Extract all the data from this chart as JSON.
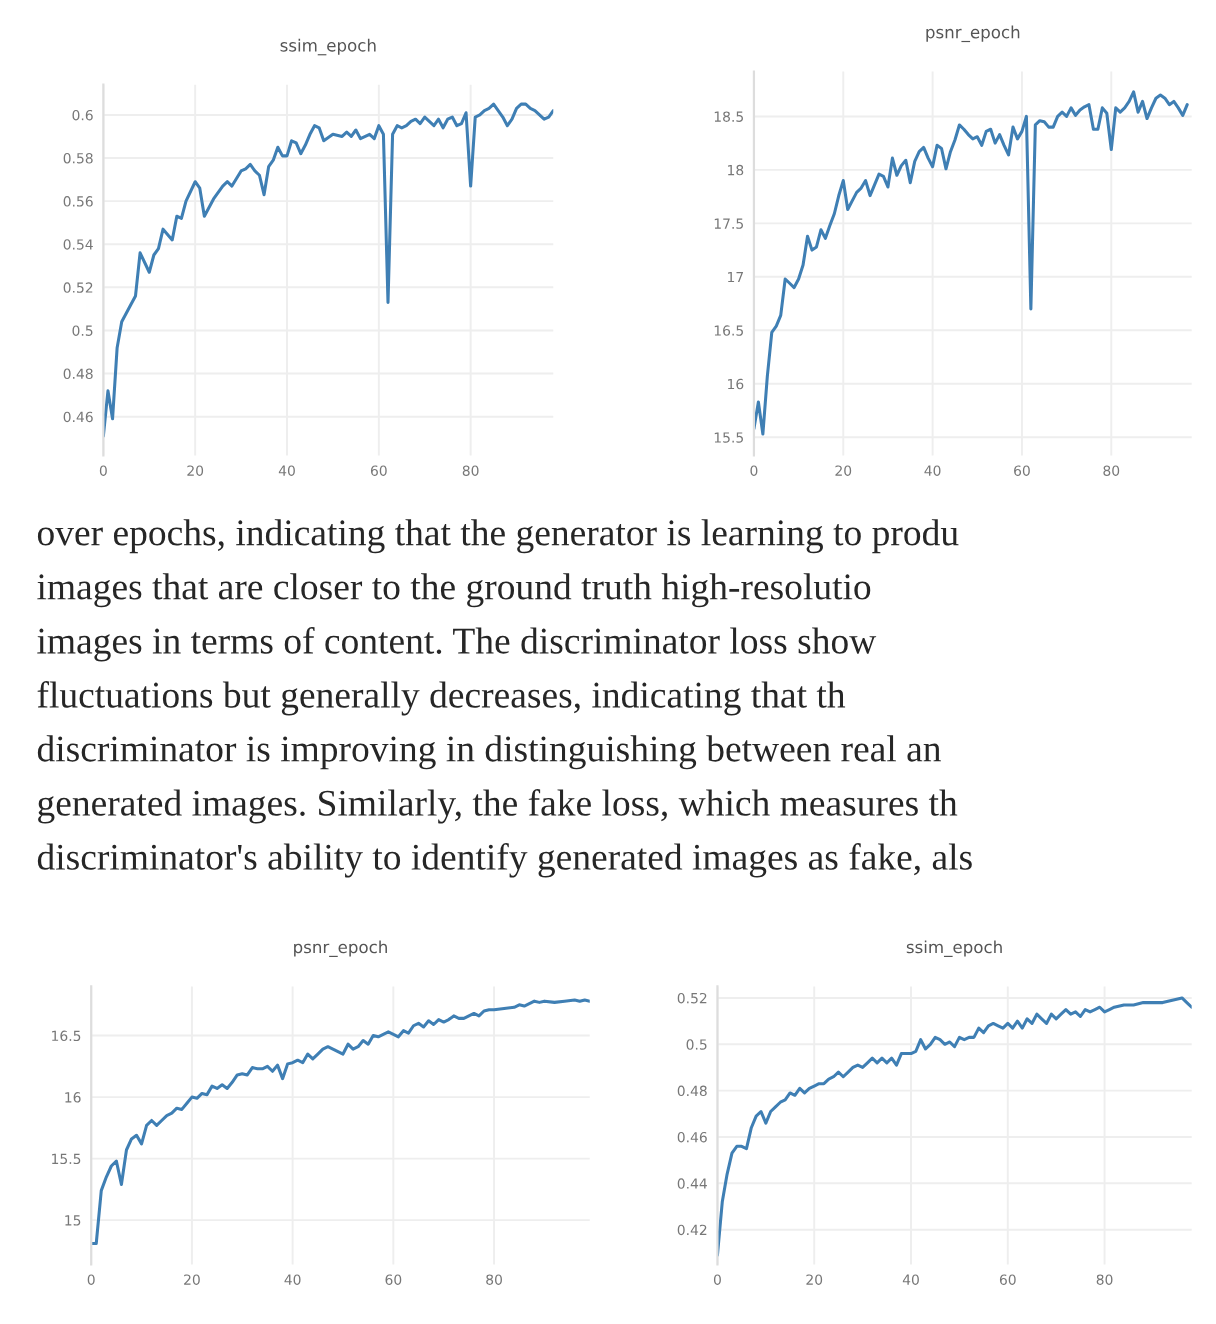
{
  "chart_data": [
    {
      "type": "line",
      "title": "ssim_epoch",
      "xlim": [
        0,
        98
      ],
      "ylim": [
        0.442,
        0.614
      ],
      "xticks": [
        0,
        20,
        40,
        60,
        80
      ],
      "yticks": [
        0.46,
        0.48,
        0.5,
        0.52,
        0.54,
        0.56,
        0.58,
        0.6
      ],
      "grid": true,
      "x": [
        0,
        1,
        2,
        3,
        4,
        6,
        7,
        8,
        10,
        11,
        12,
        13,
        15,
        16,
        17,
        18,
        20,
        21,
        22,
        24,
        26,
        27,
        28,
        30,
        31,
        32,
        33,
        34,
        35,
        36,
        37,
        38,
        39,
        40,
        41,
        42,
        43,
        44,
        45,
        46,
        47,
        48,
        50,
        52,
        53,
        54,
        55,
        56,
        58,
        59,
        60,
        61,
        62,
        63,
        64,
        65,
        66,
        67,
        68,
        69,
        70,
        71,
        72,
        73,
        74,
        75,
        76,
        77,
        78,
        79,
        80,
        81,
        82,
        83,
        84,
        85,
        86,
        87,
        88,
        89,
        90,
        91,
        92,
        93,
        94,
        95,
        96,
        97,
        98
      ],
      "series": [
        {
          "color": "#3f7fb4",
          "values": [
            0.451,
            0.472,
            0.459,
            0.492,
            0.504,
            0.512,
            0.516,
            0.536,
            0.527,
            0.535,
            0.538,
            0.547,
            0.542,
            0.553,
            0.552,
            0.56,
            0.569,
            0.566,
            0.553,
            0.561,
            0.567,
            0.569,
            0.567,
            0.574,
            0.575,
            0.577,
            0.574,
            0.572,
            0.563,
            0.576,
            0.579,
            0.585,
            0.581,
            0.581,
            0.588,
            0.587,
            0.582,
            0.586,
            0.591,
            0.595,
            0.594,
            0.588,
            0.591,
            0.59,
            0.592,
            0.59,
            0.593,
            0.589,
            0.591,
            0.589,
            0.595,
            0.591,
            0.513,
            0.591,
            0.595,
            0.594,
            0.595,
            0.597,
            0.598,
            0.596,
            0.599,
            0.597,
            0.595,
            0.598,
            0.594,
            0.598,
            0.599,
            0.595,
            0.596,
            0.601,
            0.567,
            0.599,
            0.6,
            0.602,
            0.603,
            0.605,
            0.602,
            0.599,
            0.595,
            0.598,
            0.603,
            0.605,
            0.605,
            0.603,
            0.602,
            0.6,
            0.598,
            0.599,
            0.602
          ]
        }
      ]
    },
    {
      "type": "line",
      "title": "psnr_epoch",
      "xlim": [
        0,
        98
      ],
      "ylim": [
        15.33,
        18.92
      ],
      "xticks": [
        0,
        20,
        40,
        60,
        80
      ],
      "yticks": [
        15.5,
        16,
        16.5,
        17,
        17.5,
        18,
        18.5
      ],
      "grid": true,
      "x": [
        0,
        1,
        2,
        3,
        4,
        5,
        6,
        7,
        8,
        9,
        10,
        11,
        12,
        13,
        14,
        15,
        16,
        17,
        18,
        19,
        20,
        21,
        22,
        23,
        24,
        25,
        26,
        27,
        28,
        29,
        30,
        31,
        32,
        33,
        34,
        35,
        36,
        37,
        38,
        39,
        40,
        41,
        42,
        43,
        44,
        45,
        46,
        47,
        48,
        49,
        50,
        51,
        52,
        53,
        54,
        55,
        56,
        57,
        58,
        59,
        60,
        61,
        62,
        63,
        64,
        65,
        66,
        67,
        68,
        69,
        70,
        71,
        72,
        73,
        74,
        75,
        76,
        77,
        78,
        79,
        80,
        81,
        82,
        83,
        84,
        85,
        86,
        87,
        88,
        89,
        90,
        91,
        92,
        93,
        94,
        95,
        96,
        97
      ],
      "series": [
        {
          "color": "#3f7fb4",
          "values": [
            15.58,
            15.83,
            15.53,
            16.07,
            16.48,
            16.54,
            16.64,
            16.98,
            16.94,
            16.9,
            16.98,
            17.11,
            17.38,
            17.25,
            17.28,
            17.44,
            17.36,
            17.48,
            17.59,
            17.76,
            17.9,
            17.63,
            17.71,
            17.79,
            17.83,
            17.9,
            17.76,
            17.86,
            17.96,
            17.94,
            17.84,
            18.11,
            17.95,
            18.04,
            18.09,
            17.88,
            18.08,
            18.17,
            18.21,
            18.11,
            18.03,
            18.23,
            18.2,
            18.01,
            18.17,
            18.28,
            18.42,
            18.38,
            18.33,
            18.29,
            18.31,
            18.23,
            18.36,
            18.38,
            18.25,
            18.33,
            18.23,
            18.14,
            18.4,
            18.29,
            18.36,
            18.5,
            16.7,
            18.42,
            18.46,
            18.45,
            18.4,
            18.4,
            18.5,
            18.54,
            18.5,
            18.58,
            18.51,
            18.56,
            18.59,
            18.61,
            18.38,
            18.38,
            18.58,
            18.53,
            18.19,
            18.58,
            18.54,
            18.58,
            18.64,
            18.73,
            18.54,
            18.64,
            18.48,
            18.58,
            18.67,
            18.7,
            18.67,
            18.61,
            18.64,
            18.58,
            18.51,
            18.61
          ]
        }
      ]
    },
    {
      "type": "line",
      "title": "psnr_epoch",
      "xlim": [
        0,
        99
      ],
      "ylim": [
        14.64,
        16.9
      ],
      "xticks": [
        0,
        20,
        40,
        60,
        80
      ],
      "yticks": [
        15,
        15.5,
        16,
        16.5
      ],
      "grid": true,
      "annotations": [
        "over epochs, indicating that the generator is learning to produ",
        "images that are closer to the ground truth high-resolutio",
        "images in terms of content. The discriminator loss show",
        "fluctuations but generally decreases, indicating that th",
        "discriminator is improving in distinguishing between real an",
        "generated images. Similarly, the fake loss, which measures th",
        "discriminator's ability to identify generated images as fake, als"
      ],
      "x": [
        0,
        1,
        2,
        3,
        4,
        5,
        6,
        7,
        8,
        9,
        10,
        11,
        12,
        13,
        14,
        15,
        16,
        17,
        18,
        19,
        20,
        21,
        22,
        23,
        24,
        25,
        26,
        27,
        28,
        29,
        30,
        31,
        32,
        33,
        34,
        35,
        36,
        37,
        38,
        39,
        40,
        41,
        42,
        43,
        44,
        45,
        46,
        47,
        48,
        49,
        50,
        51,
        52,
        53,
        54,
        55,
        56,
        57,
        58,
        59,
        60,
        61,
        62,
        63,
        64,
        65,
        66,
        67,
        68,
        69,
        70,
        71,
        72,
        73,
        74,
        75,
        76,
        77,
        78,
        79,
        80,
        82,
        84,
        85,
        86,
        88,
        89,
        90,
        92,
        94,
        96,
        97,
        98,
        99
      ],
      "series": [
        {
          "color": "#3f7fb4",
          "values": [
            14.81,
            14.81,
            15.24,
            15.35,
            15.44,
            15.48,
            15.29,
            15.57,
            15.66,
            15.69,
            15.62,
            15.77,
            15.81,
            15.77,
            15.81,
            15.85,
            15.87,
            15.91,
            15.9,
            15.95,
            16.0,
            15.99,
            16.03,
            16.02,
            16.09,
            16.07,
            16.1,
            16.07,
            16.12,
            16.18,
            16.19,
            16.18,
            16.24,
            16.23,
            16.23,
            16.25,
            16.21,
            16.26,
            16.15,
            16.27,
            16.28,
            16.3,
            16.28,
            16.35,
            16.31,
            16.35,
            16.39,
            16.41,
            16.39,
            16.37,
            16.35,
            16.43,
            16.39,
            16.41,
            16.46,
            16.43,
            16.5,
            16.49,
            16.51,
            16.53,
            16.51,
            16.49,
            16.54,
            16.52,
            16.58,
            16.6,
            16.57,
            16.62,
            16.59,
            16.63,
            16.61,
            16.63,
            16.66,
            16.64,
            16.64,
            16.66,
            16.68,
            16.66,
            16.7,
            16.71,
            16.71,
            16.72,
            16.73,
            16.75,
            16.74,
            16.78,
            16.77,
            16.78,
            16.77,
            16.78,
            16.79,
            16.78,
            16.79,
            16.78
          ]
        }
      ]
    },
    {
      "type": "line",
      "title": "ssim_epoch",
      "xlim": [
        0,
        98
      ],
      "ylim": [
        0.405,
        0.525
      ],
      "xticks": [
        0,
        20,
        40,
        60,
        80
      ],
      "yticks": [
        0.42,
        0.44,
        0.46,
        0.48,
        0.5,
        0.52
      ],
      "grid": true,
      "x": [
        0,
        1,
        2,
        3,
        4,
        5,
        6,
        7,
        8,
        9,
        10,
        11,
        12,
        13,
        14,
        15,
        16,
        17,
        18,
        19,
        20,
        21,
        22,
        23,
        24,
        25,
        26,
        27,
        28,
        29,
        30,
        31,
        32,
        33,
        34,
        35,
        36,
        37,
        38,
        39,
        40,
        41,
        42,
        43,
        44,
        45,
        46,
        47,
        48,
        49,
        50,
        51,
        52,
        53,
        54,
        55,
        56,
        57,
        58,
        59,
        60,
        61,
        62,
        63,
        64,
        65,
        66,
        67,
        68,
        69,
        70,
        71,
        72,
        73,
        74,
        75,
        76,
        77,
        78,
        79,
        80,
        81,
        82,
        84,
        86,
        88,
        90,
        92,
        94,
        96,
        97,
        98
      ],
      "series": [
        {
          "color": "#3f7fb4",
          "values": [
            0.409,
            0.432,
            0.444,
            0.453,
            0.456,
            0.456,
            0.455,
            0.464,
            0.469,
            0.471,
            0.466,
            0.471,
            0.473,
            0.475,
            0.476,
            0.479,
            0.478,
            0.481,
            0.479,
            0.481,
            0.482,
            0.483,
            0.483,
            0.485,
            0.486,
            0.488,
            0.486,
            0.488,
            0.49,
            0.491,
            0.49,
            0.492,
            0.494,
            0.492,
            0.494,
            0.492,
            0.494,
            0.491,
            0.496,
            0.496,
            0.496,
            0.497,
            0.502,
            0.498,
            0.5,
            0.503,
            0.502,
            0.5,
            0.501,
            0.499,
            0.503,
            0.502,
            0.503,
            0.503,
            0.507,
            0.505,
            0.508,
            0.509,
            0.508,
            0.507,
            0.509,
            0.507,
            0.51,
            0.507,
            0.511,
            0.509,
            0.513,
            0.511,
            0.509,
            0.513,
            0.511,
            0.513,
            0.515,
            0.513,
            0.514,
            0.512,
            0.515,
            0.514,
            0.515,
            0.516,
            0.514,
            0.515,
            0.516,
            0.517,
            0.517,
            0.518,
            0.518,
            0.518,
            0.519,
            0.52,
            0.518,
            0.516
          ]
        }
      ]
    }
  ]
}
